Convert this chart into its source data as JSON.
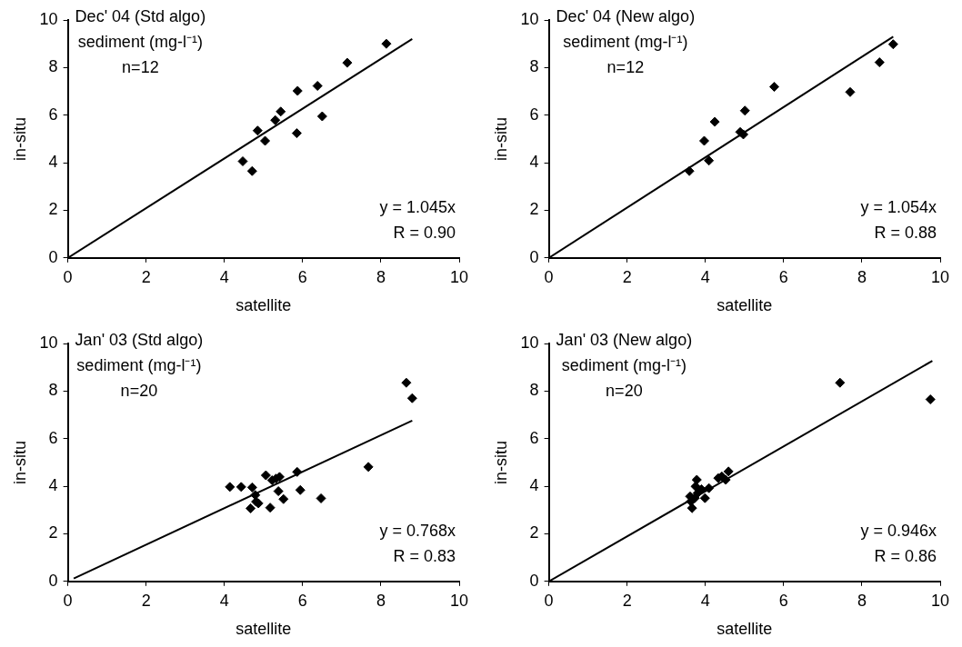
{
  "chart_data": [
    {
      "type": "scatter",
      "title": "Dec' 04 (Std algo)",
      "subtitle": "sediment (mg-l⁻¹)",
      "xlabel": "satellite",
      "ylabel": "in-situ",
      "annotations": [
        "n=12",
        "y = 1.045x",
        "R = 0.90"
      ],
      "xlim": [
        0,
        10
      ],
      "ylim": [
        0,
        10
      ],
      "xticks": [
        0,
        2,
        4,
        6,
        8,
        10
      ],
      "yticks": [
        0,
        2,
        4,
        6,
        8,
        10
      ],
      "marker": "diamond",
      "legend": false,
      "series": [
        {
          "color": "#000000",
          "x": [
            4.47,
            4.71,
            4.85,
            5.04,
            5.3,
            5.44,
            5.85,
            5.87,
            6.38,
            6.5,
            7.14,
            8.14
          ],
          "values": [
            4.06,
            3.65,
            5.35,
            4.92,
            5.79,
            6.15,
            5.24,
            7.02,
            7.23,
            5.95,
            8.2,
            9.0
          ]
        },
        {
          "type": "line",
          "color": "#000000",
          "marker": "none",
          "x": [
            0,
            8.8
          ],
          "values": [
            0,
            9.2
          ]
        }
      ]
    },
    {
      "type": "scatter",
      "title": "Dec' 04 (New algo)",
      "subtitle": "sediment (mg-l⁻¹)",
      "xlabel": "satellite",
      "ylabel": "in-situ",
      "annotations": [
        "n=12",
        "y = 1.054x",
        "R = 0.88"
      ],
      "xlim": [
        0,
        10
      ],
      "ylim": [
        0,
        10
      ],
      "xticks": [
        0,
        2,
        4,
        6,
        8,
        10
      ],
      "yticks": [
        0,
        2,
        4,
        6,
        8,
        10
      ],
      "marker": "diamond",
      "legend": false,
      "series": [
        {
          "color": "#000000",
          "x": [
            3.59,
            3.97,
            4.09,
            4.24,
            4.89,
            4.97,
            5.01,
            5.76,
            7.7,
            8.45,
            8.8
          ],
          "values": [
            3.65,
            4.92,
            4.09,
            5.72,
            5.29,
            5.19,
            6.19,
            7.19,
            6.97,
            8.22,
            8.98
          ]
        },
        {
          "type": "line",
          "color": "#000000",
          "marker": "none",
          "x": [
            0,
            8.8
          ],
          "values": [
            0,
            9.3
          ]
        }
      ]
    },
    {
      "type": "scatter",
      "title": "Jan' 03 (Std algo)",
      "subtitle": "sediment (mg-l⁻¹)",
      "xlabel": "satellite",
      "ylabel": "in-situ",
      "annotations": [
        "n=20",
        "y = 0.768x",
        "R = 0.83"
      ],
      "xlim": [
        0,
        10
      ],
      "ylim": [
        0,
        10
      ],
      "xticks": [
        0,
        2,
        4,
        6,
        8,
        10
      ],
      "yticks": [
        0,
        2,
        4,
        6,
        8,
        10
      ],
      "marker": "diamond",
      "legend": false,
      "series": [
        {
          "color": "#000000",
          "x": [
            4.14,
            4.43,
            4.71,
            4.79,
            4.81,
            4.67,
            4.87,
            5.06,
            5.17,
            5.22,
            5.32,
            5.41,
            5.38,
            5.51,
            5.86,
            5.94,
            6.47,
            7.68,
            8.65,
            8.8
          ],
          "values": [
            3.97,
            3.97,
            3.95,
            3.63,
            3.35,
            3.07,
            3.28,
            4.46,
            3.1,
            4.25,
            4.32,
            4.39,
            3.79,
            3.46,
            4.6,
            3.84,
            3.49,
            4.81,
            8.35,
            7.7
          ]
        },
        {
          "type": "line",
          "color": "#000000",
          "marker": "none",
          "x": [
            0.15,
            8.8
          ],
          "values": [
            0.12,
            6.76
          ]
        }
      ]
    },
    {
      "type": "scatter",
      "title": "Jan' 03 (New algo)",
      "subtitle": "sediment (mg-l⁻¹)",
      "xlabel": "satellite",
      "ylabel": "in-situ",
      "annotations": [
        "n=20",
        "y = 0.946x",
        "R = 0.86"
      ],
      "xlim": [
        0,
        10
      ],
      "ylim": [
        0,
        10
      ],
      "xticks": [
        0,
        2,
        4,
        6,
        8,
        10
      ],
      "yticks": [
        0,
        2,
        4,
        6,
        8,
        10
      ],
      "marker": "diamond",
      "legend": false,
      "series": [
        {
          "color": "#000000",
          "x": [
            3.66,
            3.63,
            3.61,
            3.69,
            3.71,
            3.75,
            3.8,
            3.9,
            3.99,
            4.14,
            4.33,
            4.42,
            4.47,
            4.59,
            4.52,
            3.73,
            3.78,
            4.09,
            7.44,
            9.75
          ],
          "values": [
            3.08,
            3.36,
            3.57,
            null,
            null,
            3.99,
            3.71,
            3.87,
            3.5,
            null,
            4.34,
            4.41,
            null,
            4.62,
            4.27,
            3.5,
            4.27,
            3.92,
            8.35,
            7.65
          ]
        },
        {
          "type": "line",
          "color": "#000000",
          "marker": "none",
          "x": [
            0,
            9.8
          ],
          "values": [
            0,
            9.27
          ]
        }
      ]
    }
  ]
}
